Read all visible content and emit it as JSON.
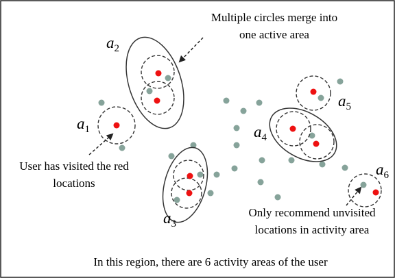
{
  "annotations": [
    {
      "lines": [
        "Multiple circles merge into",
        "one active area"
      ]
    },
    {
      "lines": [
        "User has visited the red",
        "locations"
      ]
    },
    {
      "lines": [
        "Only recommend unvisited",
        "locations in activity area"
      ]
    }
  ],
  "areas": [
    {
      "label": "a",
      "sub": "1"
    },
    {
      "label": "a",
      "sub": "2"
    },
    {
      "label": "a",
      "sub": "3"
    },
    {
      "label": "a",
      "sub": "4"
    },
    {
      "label": "a",
      "sub": "5"
    },
    {
      "label": "a",
      "sub": "6"
    }
  ],
  "caption": "In this region, there are 6 activity areas of the user"
}
